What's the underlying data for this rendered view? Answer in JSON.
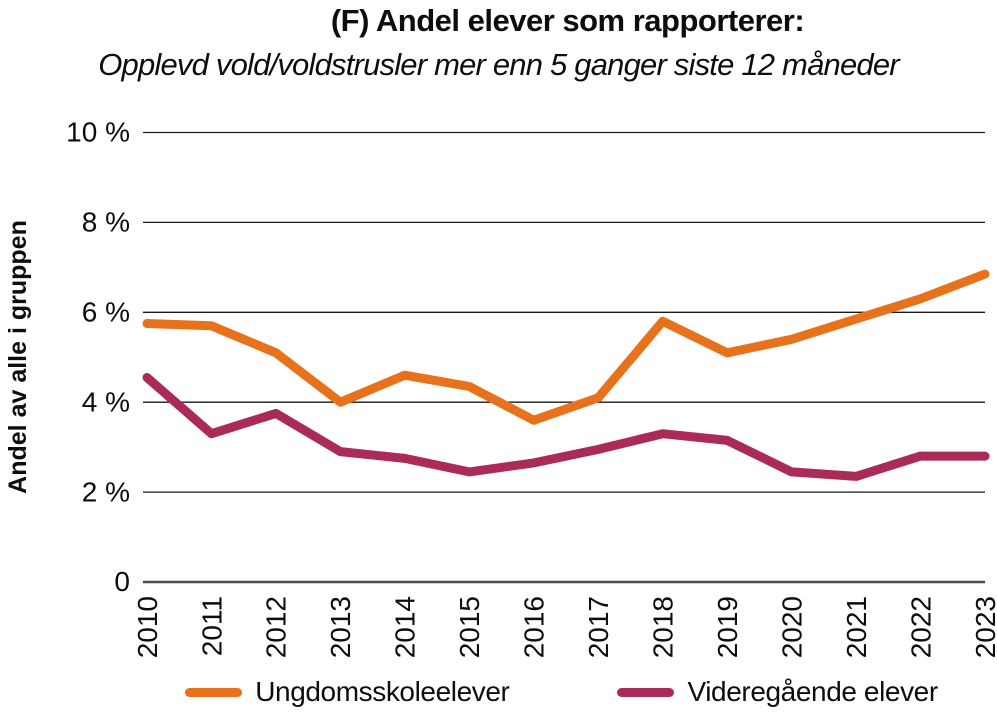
{
  "chart_data": {
    "type": "line",
    "title": "(F) Andel elever som rapporterer:",
    "subtitle": "Opplevd vold/voldstrusler mer enn 5 ganger siste 12 måneder",
    "ylabel": "Andel av alle i gruppen",
    "x": [
      2010,
      2011,
      2012,
      2013,
      2014,
      2015,
      2016,
      2017,
      2018,
      2019,
      2020,
      2021,
      2022,
      2023
    ],
    "series": [
      {
        "name": "Ungdomsskoleelever",
        "color": "#E8711C",
        "values": [
          5.75,
          5.7,
          5.1,
          4.0,
          4.6,
          4.35,
          3.6,
          4.1,
          5.8,
          5.1,
          5.4,
          5.85,
          6.3,
          6.85
        ]
      },
      {
        "name": "Videregående elever",
        "color": "#AA2B57",
        "values": [
          4.55,
          3.3,
          3.75,
          2.9,
          2.75,
          2.45,
          2.65,
          2.95,
          3.3,
          3.15,
          2.45,
          2.35,
          2.8,
          2.8
        ]
      }
    ],
    "ylim": [
      0,
      10
    ],
    "yticks": {
      "values": [
        0,
        2,
        4,
        6,
        8,
        10
      ],
      "labels": [
        "0",
        "2 %",
        "4 %",
        "6 %",
        "8 %",
        "10 %"
      ]
    },
    "grid": true,
    "legend_position": "bottom",
    "colors": {
      "gridline": "#1a1a1a",
      "axis_line": "#4d4d4d",
      "text": "#0d0d0d"
    }
  }
}
